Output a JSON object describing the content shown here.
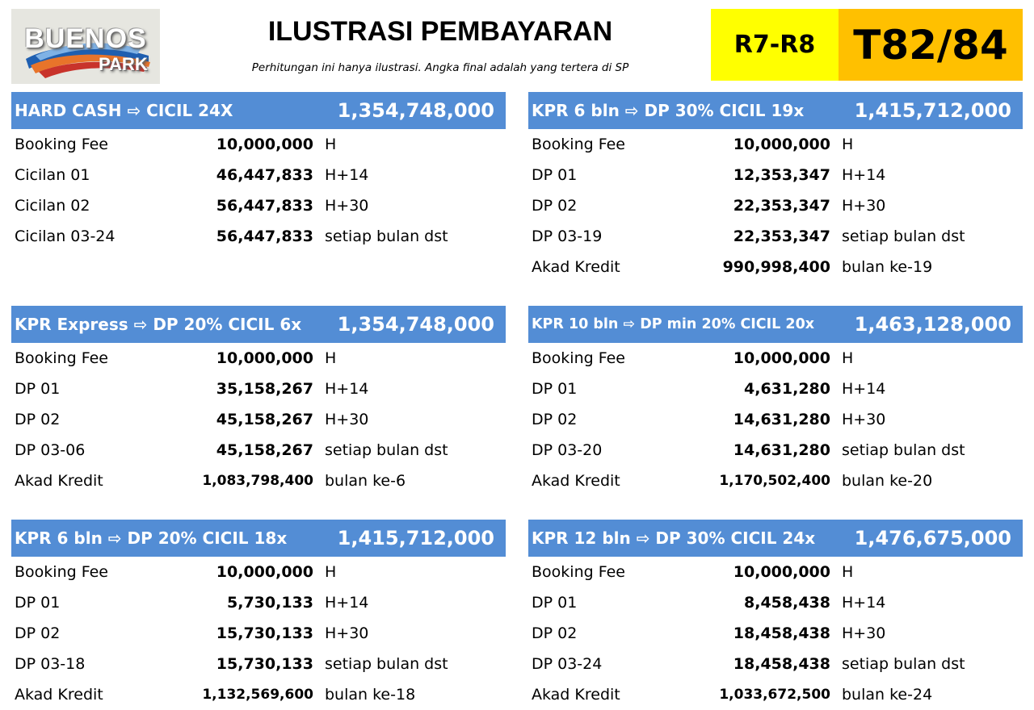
{
  "logo": {
    "line1": "BUENOS",
    "line2": "PARK"
  },
  "header": {
    "title": "ILUSTRASI PEMBAYARAN",
    "subtitle": "Perhitungan ini hanya ilustrasi. Angka final adalah yang tertera di SP",
    "block_label": "R7-R8",
    "type_label": "T82/84"
  },
  "colors": {
    "section_header": "#538dd5",
    "block_badge": "#ffff00",
    "type_badge": "#ffc000"
  },
  "sections": [
    {
      "title": "HARD CASH ⇨ CICIL 24X",
      "total": "1,354,748,000",
      "rows": [
        {
          "label": "Booking Fee",
          "amount": "10,000,000",
          "note": "H"
        },
        {
          "label": "Cicilan 01",
          "amount": "46,447,833",
          "note": "H+14"
        },
        {
          "label": "Cicilan 02",
          "amount": "56,447,833",
          "note": "H+30"
        },
        {
          "label": "Cicilan 03-24",
          "amount": "56,447,833",
          "note": "setiap bulan dst"
        }
      ]
    },
    {
      "title": "KPR 6 bln ⇨ DP 30% CICIL 19x",
      "total": "1,415,712,000",
      "rows": [
        {
          "label": "Booking Fee",
          "amount": "10,000,000",
          "note": "H"
        },
        {
          "label": "DP 01",
          "amount": "12,353,347",
          "note": "H+14"
        },
        {
          "label": "DP 02",
          "amount": "22,353,347",
          "note": "H+30"
        },
        {
          "label": "DP 03-19",
          "amount": "22,353,347",
          "note": "setiap bulan dst"
        },
        {
          "label": "Akad Kredit",
          "amount": "990,998,400",
          "note": "bulan ke-19"
        }
      ]
    },
    {
      "title": "KPR Express ⇨ DP 20% CICIL 6x",
      "total": "1,354,748,000",
      "rows": [
        {
          "label": "Booking Fee",
          "amount": "10,000,000",
          "note": "H"
        },
        {
          "label": "DP 01",
          "amount": "35,158,267",
          "note": "H+14"
        },
        {
          "label": "DP 02",
          "amount": "45,158,267",
          "note": "H+30"
        },
        {
          "label": "DP 03-06",
          "amount": "45,158,267",
          "note": "setiap bulan dst"
        },
        {
          "label": "Akad Kredit",
          "amount": "1,083,798,400",
          "note": "bulan ke-6"
        }
      ]
    },
    {
      "title": "KPR 10 bln ⇨ DP min 20% CICIL 20x",
      "total": "1,463,128,000",
      "rows": [
        {
          "label": "Booking Fee",
          "amount": "10,000,000",
          "note": "H"
        },
        {
          "label": "DP 01",
          "amount": "4,631,280",
          "note": "H+14"
        },
        {
          "label": "DP 02",
          "amount": "14,631,280",
          "note": "H+30"
        },
        {
          "label": "DP 03-20",
          "amount": "14,631,280",
          "note": "setiap bulan dst"
        },
        {
          "label": "Akad Kredit",
          "amount": "1,170,502,400",
          "note": "bulan ke-20"
        }
      ]
    },
    {
      "title": "KPR 6 bln ⇨ DP 20% CICIL 18x",
      "total": "1,415,712,000",
      "rows": [
        {
          "label": "Booking Fee",
          "amount": "10,000,000",
          "note": "H"
        },
        {
          "label": "DP 01",
          "amount": "5,730,133",
          "note": "H+14"
        },
        {
          "label": "DP 02",
          "amount": "15,730,133",
          "note": "H+30"
        },
        {
          "label": "DP 03-18",
          "amount": "15,730,133",
          "note": "setiap bulan dst"
        },
        {
          "label": "Akad Kredit",
          "amount": "1,132,569,600",
          "note": "bulan ke-18"
        }
      ]
    },
    {
      "title": "KPR 12 bln ⇨ DP 30% CICIL 24x",
      "total": "1,476,675,000",
      "rows": [
        {
          "label": "Booking Fee",
          "amount": "10,000,000",
          "note": "H"
        },
        {
          "label": "DP 01",
          "amount": "8,458,438",
          "note": "H+14"
        },
        {
          "label": "DP 02",
          "amount": "18,458,438",
          "note": "H+30"
        },
        {
          "label": "DP 03-24",
          "amount": "18,458,438",
          "note": "setiap bulan dst"
        },
        {
          "label": "Akad Kredit",
          "amount": "1,033,672,500",
          "note": "bulan ke-24"
        }
      ]
    }
  ]
}
